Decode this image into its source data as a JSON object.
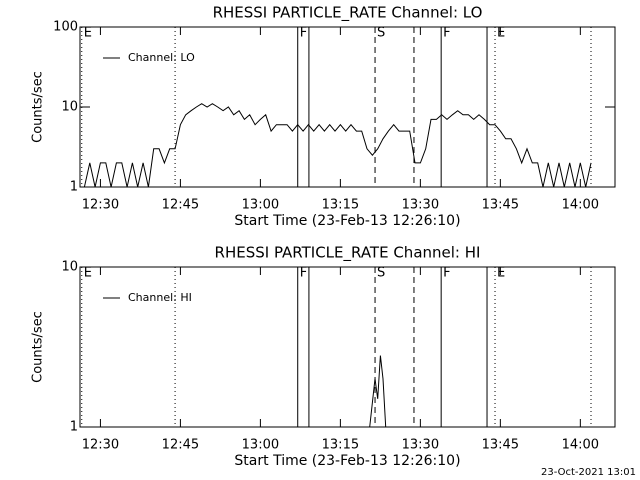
{
  "chart_data": [
    {
      "type": "line",
      "title": "RHESSI PARTICLE_RATE Channel: LO",
      "x_label": "Start Time (23-Feb-13 12:26:10)",
      "y_label": "Counts/sec",
      "log_y": true,
      "ylim": [
        1,
        100
      ],
      "yticks": [
        1,
        10,
        100
      ],
      "xlim": [
        26.17,
        126.5
      ],
      "xticks": [
        {
          "value": 30,
          "label": "12:30"
        },
        {
          "value": 45,
          "label": "12:45"
        },
        {
          "value": 60,
          "label": "13:00"
        },
        {
          "value": 75,
          "label": "13:15"
        },
        {
          "value": 90,
          "label": "13:30"
        },
        {
          "value": 105,
          "label": "13:45"
        },
        {
          "value": 120,
          "label": "14:00"
        }
      ],
      "series": [
        {
          "name": "Channel: LO",
          "color": "#000000",
          "x": [
            27,
            28,
            29,
            30,
            31,
            32,
            33,
            34,
            35,
            36,
            37,
            38,
            39,
            40,
            41,
            42,
            43,
            44,
            45,
            46,
            47,
            48,
            49,
            50,
            51,
            52,
            53,
            54,
            55,
            56,
            57,
            58,
            59,
            60,
            61,
            62,
            63,
            64,
            65,
            66,
            67,
            68,
            69,
            70,
            71,
            72,
            73,
            74,
            75,
            76,
            77,
            78,
            79,
            80,
            81,
            82,
            83,
            84,
            85,
            86,
            87,
            88,
            89,
            90,
            91,
            92,
            93,
            94,
            95,
            96,
            97,
            98,
            99,
            100,
            101,
            102,
            103,
            104,
            105,
            106,
            107,
            108,
            109,
            110,
            111,
            112,
            113,
            114,
            115,
            116,
            117,
            118,
            119,
            120,
            121,
            122
          ],
          "values": [
            1,
            2,
            1,
            2,
            2,
            1,
            2,
            2,
            1,
            2,
            1,
            2,
            1,
            3,
            3,
            2,
            3,
            3,
            6,
            8,
            9,
            10,
            11,
            10,
            11,
            10,
            9,
            10,
            8,
            9,
            7,
            8,
            6,
            7,
            8,
            5,
            6,
            6,
            6,
            5,
            6,
            5,
            6,
            5,
            6,
            5,
            6,
            5,
            6,
            5,
            6,
            5,
            5,
            3,
            2.5,
            3,
            4,
            5,
            6,
            5,
            5,
            5,
            2,
            2,
            3,
            7,
            7,
            8,
            7,
            8,
            9,
            8,
            8,
            7,
            8,
            7,
            6,
            6,
            5,
            4,
            4,
            3,
            2,
            3,
            2,
            2,
            1,
            2,
            1,
            2,
            1,
            2,
            1,
            2,
            1,
            2
          ]
        }
      ],
      "markers": [
        {
          "x": 26.5,
          "style": "dotted",
          "label": "E"
        },
        {
          "x": 44.0,
          "style": "dotted"
        },
        {
          "x": 67.0,
          "style": "solid",
          "label": "F"
        },
        {
          "x": 69.1,
          "style": "solid"
        },
        {
          "x": 81.5,
          "style": "dashed",
          "label": "S"
        },
        {
          "x": 88.8,
          "style": "dashed"
        },
        {
          "x": 93.9,
          "style": "solid",
          "label": "F"
        },
        {
          "x": 102.5,
          "style": "solid"
        },
        {
          "x": 104.0,
          "style": "dotted",
          "label": "E"
        },
        {
          "x": 122.0,
          "style": "dotted"
        }
      ]
    },
    {
      "type": "line",
      "title": "RHESSI PARTICLE_RATE Channel: HI",
      "x_label": "Start Time (23-Feb-13 12:26:10)",
      "y_label": "Counts/sec",
      "log_y": true,
      "ylim": [
        1,
        10
      ],
      "yticks": [
        1,
        10
      ],
      "xlim": [
        26.17,
        126.5
      ],
      "xticks": [
        {
          "value": 30,
          "label": "12:30"
        },
        {
          "value": 45,
          "label": "12:45"
        },
        {
          "value": 60,
          "label": "13:00"
        },
        {
          "value": 75,
          "label": "13:15"
        },
        {
          "value": 90,
          "label": "13:30"
        },
        {
          "value": 105,
          "label": "13:45"
        },
        {
          "value": 120,
          "label": "14:00"
        }
      ],
      "series": [
        {
          "name": "Channel: HI",
          "color": "#000000",
          "x": [
            80.5,
            81.5,
            82,
            82.5,
            83,
            83.5
          ],
          "values": [
            1,
            2,
            1.5,
            2.8,
            2,
            1
          ]
        }
      ],
      "markers": [
        {
          "x": 26.5,
          "style": "dotted",
          "label": "E"
        },
        {
          "x": 44.0,
          "style": "dotted"
        },
        {
          "x": 67.0,
          "style": "solid",
          "label": "F"
        },
        {
          "x": 69.1,
          "style": "solid"
        },
        {
          "x": 81.5,
          "style": "dashed",
          "label": "S"
        },
        {
          "x": 88.8,
          "style": "dashed"
        },
        {
          "x": 93.9,
          "style": "solid",
          "label": "F"
        },
        {
          "x": 102.5,
          "style": "solid"
        },
        {
          "x": 104.0,
          "style": "dotted",
          "label": "E"
        },
        {
          "x": 122.0,
          "style": "dotted"
        }
      ]
    }
  ],
  "footer": "23-Oct-2021 13:01"
}
